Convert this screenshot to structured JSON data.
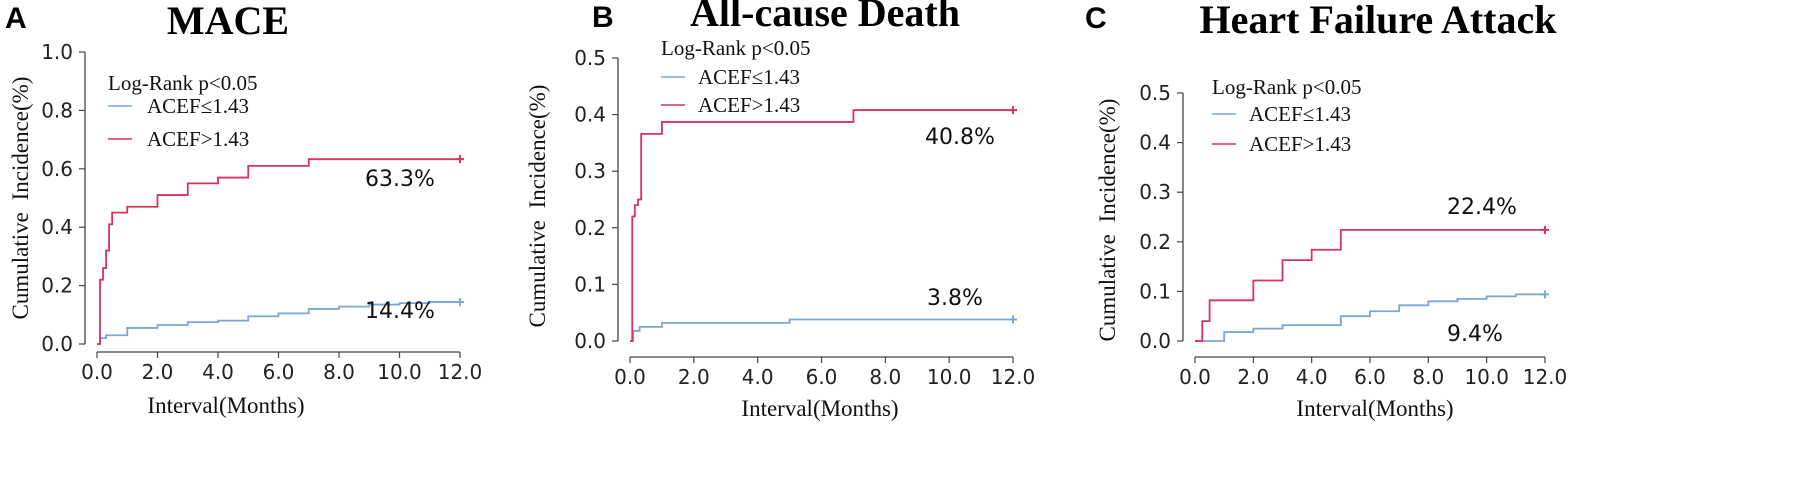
{
  "figure": {
    "panel_letters": [
      "A",
      "B",
      "C"
    ]
  },
  "colors": {
    "low": "#7aa6d8",
    "high": "#d9325e",
    "axis": "#444444"
  },
  "chart_data": [
    {
      "type": "line",
      "panel": "A",
      "title": "MACE",
      "xlabel": "Interval(Months)",
      "ylabel": "Cumulative Incidence(%)",
      "xlim": [
        0,
        12
      ],
      "ylim": [
        0,
        1.0
      ],
      "xticks": [
        0.0,
        2.0,
        4.0,
        6.0,
        8.0,
        10.0,
        12.0
      ],
      "xtick_labels": [
        "0.0",
        "2.0",
        "4.0",
        "6.0",
        "8.0",
        "10.0",
        "12.0"
      ],
      "yticks": [
        0.0,
        0.2,
        0.4,
        0.6,
        0.8,
        1.0
      ],
      "ytick_labels": [
        "0.0",
        "0.2",
        "0.4",
        "0.6",
        "0.8",
        "1.0"
      ],
      "legend_title": "Log-Rank p<0.05",
      "series": [
        {
          "name": "ACEF≤1.43",
          "color": "#7aa6d8",
          "step": true,
          "x": [
            0,
            0.1,
            0.3,
            1.0,
            2.0,
            3.0,
            4.0,
            5.0,
            6.0,
            7.0,
            8.0,
            9.0,
            10.0,
            11.0,
            12.0
          ],
          "y": [
            0.0,
            0.02,
            0.03,
            0.055,
            0.065,
            0.075,
            0.08,
            0.095,
            0.105,
            0.12,
            0.128,
            0.135,
            0.14,
            0.144,
            0.144
          ],
          "annotation": "14.4%"
        },
        {
          "name": "ACEF>1.43",
          "color": "#d9325e",
          "step": true,
          "x": [
            0,
            0.1,
            0.2,
            0.3,
            0.4,
            0.5,
            1.0,
            2.0,
            3.0,
            4.0,
            5.0,
            7.0,
            12.0
          ],
          "y": [
            0.0,
            0.22,
            0.26,
            0.32,
            0.41,
            0.45,
            0.47,
            0.51,
            0.55,
            0.57,
            0.61,
            0.633,
            0.633
          ],
          "annotation": "63.3%"
        }
      ]
    },
    {
      "type": "line",
      "panel": "B",
      "title": "All-cause Death",
      "xlabel": "Interval(Months)",
      "ylabel": "Cumulative Incidence(%)",
      "xlim": [
        0,
        12
      ],
      "ylim": [
        0,
        0.5
      ],
      "xticks": [
        0.0,
        2.0,
        4.0,
        6.0,
        8.0,
        10.0,
        12.0
      ],
      "xtick_labels": [
        "0.0",
        "2.0",
        "4.0",
        "6.0",
        "8.0",
        "10.0",
        "12.0"
      ],
      "yticks": [
        0.0,
        0.1,
        0.2,
        0.3,
        0.4,
        0.5
      ],
      "ytick_labels": [
        "0.0",
        "0.1",
        "0.2",
        "0.3",
        "0.4",
        "0.5"
      ],
      "legend_title": "Log-Rank p<0.05",
      "series": [
        {
          "name": "ACEF≤1.43",
          "color": "#7aa6d8",
          "step": true,
          "x": [
            0,
            0.1,
            0.3,
            1.0,
            5.0,
            12.0
          ],
          "y": [
            0.0,
            0.018,
            0.025,
            0.032,
            0.038,
            0.038
          ],
          "annotation": "3.8%"
        },
        {
          "name": "ACEF>1.43",
          "color": "#d9325e",
          "step": true,
          "x": [
            0,
            0.07,
            0.15,
            0.25,
            0.35,
            1.0,
            7.0,
            12.0
          ],
          "y": [
            0.0,
            0.22,
            0.24,
            0.25,
            0.366,
            0.387,
            0.408,
            0.408
          ],
          "annotation": "40.8%"
        }
      ]
    },
    {
      "type": "line",
      "panel": "C",
      "title": "Heart Failure Attack",
      "xlabel": "Interval(Months)",
      "ylabel": "Cumulative Incidence(%)",
      "xlim": [
        0,
        12
      ],
      "ylim": [
        0,
        0.5
      ],
      "xticks": [
        0.0,
        2.0,
        4.0,
        6.0,
        8.0,
        10.0,
        12.0
      ],
      "xtick_labels": [
        "0.0",
        "2.0",
        "4.0",
        "6.0",
        "8.0",
        "10.0",
        "12.0"
      ],
      "yticks": [
        0.0,
        0.1,
        0.2,
        0.3,
        0.4,
        0.5
      ],
      "ytick_labels": [
        "0.0",
        "0.1",
        "0.2",
        "0.3",
        "0.4",
        "0.5"
      ],
      "legend_title": "Log-Rank p<0.05",
      "series": [
        {
          "name": "ACEF≤1.43",
          "color": "#7aa6d8",
          "step": true,
          "x": [
            0,
            1.0,
            2.0,
            3.0,
            5.0,
            6.0,
            7.0,
            8.0,
            9.0,
            10.0,
            11.0,
            12.0
          ],
          "y": [
            0.0,
            0.018,
            0.025,
            0.032,
            0.05,
            0.06,
            0.072,
            0.08,
            0.085,
            0.09,
            0.094,
            0.094
          ],
          "annotation": "9.4%"
        },
        {
          "name": "ACEF>1.43",
          "color": "#d9325e",
          "step": true,
          "x": [
            0,
            0.25,
            0.5,
            2.0,
            3.0,
            4.0,
            5.0,
            12.0
          ],
          "y": [
            0.0,
            0.04,
            0.082,
            0.122,
            0.163,
            0.184,
            0.224,
            0.224
          ],
          "annotation": "22.4%"
        }
      ]
    }
  ]
}
